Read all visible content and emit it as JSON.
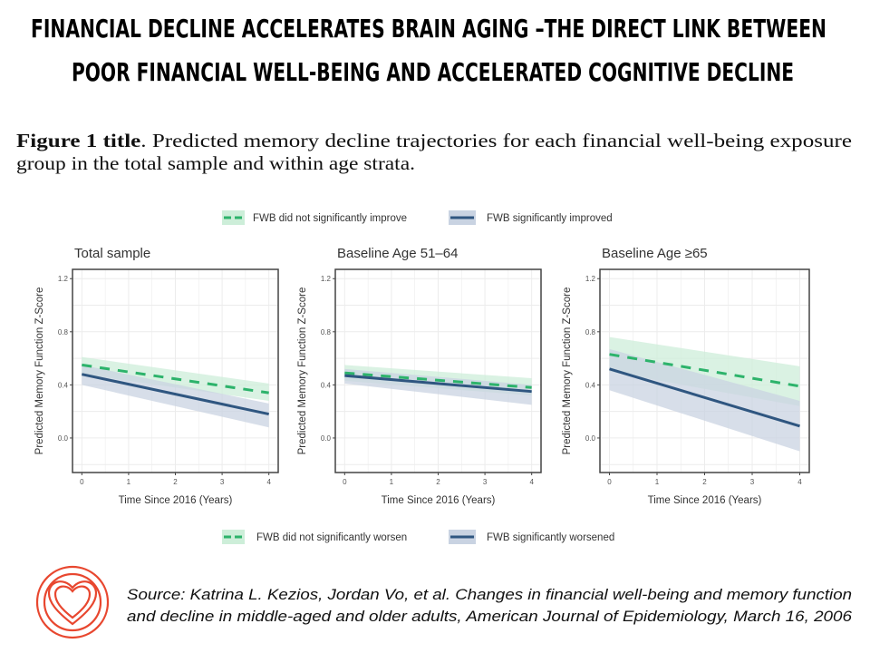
{
  "slide": {
    "title_lines": [
      "FINANCIAL DECLINE ACCELERATES BRAIN AGING –THE DIRECT LINK BETWEEN",
      "POOR FINANCIAL WELL-BEING AND ACCELERATED COGNITIVE DECLINE"
    ],
    "caption_bold": "Figure 1 title",
    "caption_line1": ". Predicted memory decline trajectories for each financial well-being exposure",
    "caption_line2": "group in the total sample and within age strata.",
    "source_line1": "Source: Katrina L. Kezios, Jordan Vo, et al. Changes in financial well-being and memory function",
    "source_line2": "and decline in middle-aged and older adults, American Journal of Epidemiology, March 16, 2006",
    "logo_icon": "concentric-heart-icon",
    "logo_color": "#e8472f"
  },
  "chart_data": {
    "type": "line",
    "legend_top": [
      "FWB did not significantly improve",
      "FWB significantly improved"
    ],
    "legend_bottom": [
      "FWB did not significantly worsen",
      "FWB significantly worsened"
    ],
    "legend_placement": [
      "top",
      "bottom"
    ],
    "colors": {
      "green": "#2db36b",
      "green_band": "#cdeed9",
      "blue": "#2f5680",
      "blue_band": "#c9d3e2"
    },
    "xlabel": "Time Since 2016 (Years)",
    "ylabel": "Predicted Memory Function Z-Score",
    "x_ticks": [
      "0",
      "1",
      "2",
      "3",
      "4"
    ],
    "y_ticks": [
      "0.0",
      "0.4",
      "0.8",
      "1.2"
    ],
    "xlim": [
      -0.2,
      4.2
    ],
    "ylim": [
      -0.26,
      1.27
    ],
    "grid": true,
    "panels": [
      {
        "title": "Total sample",
        "series": [
          {
            "style": "dashed",
            "color": "green",
            "x": [
              0,
              4
            ],
            "y": [
              0.55,
              0.34
            ],
            "lower": [
              0.48,
              0.28
            ],
            "upper": [
              0.61,
              0.41
            ]
          },
          {
            "style": "solid",
            "color": "blue",
            "x": [
              0,
              4
            ],
            "y": [
              0.48,
              0.18
            ],
            "lower": [
              0.4,
              0.08
            ],
            "upper": [
              0.55,
              0.26
            ]
          }
        ]
      },
      {
        "title": "Baseline Age 51–64",
        "series": [
          {
            "style": "dashed",
            "color": "green",
            "x": [
              0,
              4
            ],
            "y": [
              0.49,
              0.38
            ],
            "lower": [
              0.43,
              0.32
            ],
            "upper": [
              0.55,
              0.45
            ]
          },
          {
            "style": "solid",
            "color": "blue",
            "x": [
              0,
              4
            ],
            "y": [
              0.47,
              0.35
            ],
            "lower": [
              0.41,
              0.25
            ],
            "upper": [
              0.52,
              0.4
            ]
          }
        ]
      },
      {
        "title": "Baseline Age ≥65",
        "series": [
          {
            "style": "dashed",
            "color": "green",
            "x": [
              0,
              4
            ],
            "y": [
              0.63,
              0.39
            ],
            "lower": [
              0.5,
              0.24
            ],
            "upper": [
              0.76,
              0.54
            ]
          },
          {
            "style": "solid",
            "color": "blue",
            "x": [
              0,
              4
            ],
            "y": [
              0.52,
              0.09
            ],
            "lower": [
              0.36,
              -0.1
            ],
            "upper": [
              0.67,
              0.28
            ]
          }
        ]
      }
    ]
  }
}
